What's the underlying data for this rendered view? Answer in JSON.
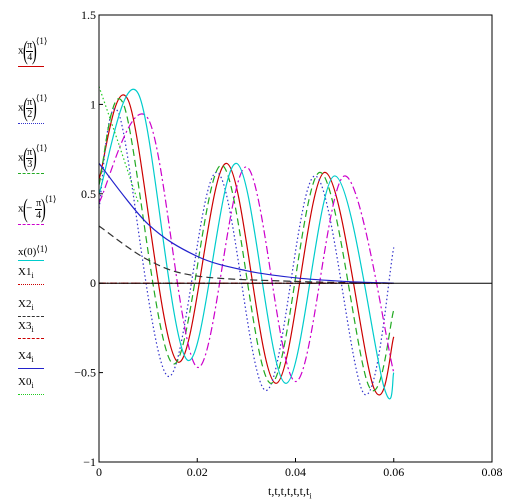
{
  "chart_data": {
    "type": "line",
    "x_axis": {
      "xlim": [
        0,
        0.08
      ],
      "tick_labels": [
        "0",
        "0.02",
        "0.04",
        "0.06",
        "0.08"
      ],
      "label": "t,t,t,t,t,t,t",
      "label_subscript": "i"
    },
    "y_axis": {
      "ylim": [
        -1,
        1.5
      ],
      "tick_labels": [
        "1.5",
        "1",
        "0.5",
        "0",
        "−0.5",
        "−1"
      ]
    },
    "grid": false,
    "legend_position": "left",
    "legend": [
      {
        "prefix": "x",
        "sign": "",
        "num": "π",
        "den": "4",
        "sup": "⟨1⟩"
      },
      {
        "prefix": "x",
        "sign": "",
        "num": "π",
        "den": "2",
        "sup": "⟨1⟩"
      },
      {
        "prefix": "x",
        "sign": "",
        "num": "π",
        "den": "3",
        "sup": "⟨1⟩"
      },
      {
        "prefix": "x",
        "sign": "−",
        "num": "π",
        "den": "4",
        "sup": "⟨1⟩"
      },
      {
        "text": "x(0)",
        "sup": "⟨1⟩"
      },
      {
        "text": "X1",
        "sub": "i"
      },
      {
        "text": "X2",
        "sub": "i"
      },
      {
        "text": "X3",
        "sub": "i"
      },
      {
        "text": "X4",
        "sub": "i"
      },
      {
        "text": "X0",
        "sub": "i"
      }
    ],
    "series": [
      {
        "color": "#cc0000",
        "style": "solid",
        "sample_x": [
          0,
          0.006,
          0.016,
          0.026,
          0.036,
          0.046,
          0.056,
          0.06
        ],
        "sample_y": [
          0.58,
          1.02,
          -0.44,
          0.67,
          -0.56,
          0.62,
          -0.59,
          -0.3
        ]
      },
      {
        "color": "#3333cc",
        "style": "dotted",
        "sample_x": [
          0,
          0.004,
          0.014,
          0.024,
          0.034,
          0.044,
          0.054,
          0.06
        ],
        "sample_y": [
          0.42,
          0.95,
          -0.52,
          0.62,
          -0.6,
          0.6,
          -0.62,
          0.2
        ]
      },
      {
        "color": "#22aa22",
        "style": "dashed",
        "sample_x": [
          0,
          0.005,
          0.015,
          0.025,
          0.035,
          0.045,
          0.055,
          0.06
        ],
        "sample_y": [
          0.55,
          1.0,
          -0.45,
          0.66,
          -0.56,
          0.62,
          -0.58,
          -0.15
        ]
      },
      {
        "color": "#cc00cc",
        "style": "dashdot",
        "sample_x": [
          0,
          0.01,
          0.02,
          0.03,
          0.04,
          0.05,
          0.06
        ],
        "sample_y": [
          0.45,
          0.92,
          -0.47,
          0.65,
          -0.55,
          0.6,
          -0.5
        ]
      },
      {
        "color": "#00cccc",
        "style": "solid",
        "sample_x": [
          0,
          0.008,
          0.018,
          0.028,
          0.038,
          0.048,
          0.058,
          0.06
        ],
        "sample_y": [
          0.5,
          1.06,
          -0.43,
          0.67,
          -0.56,
          0.6,
          -0.58,
          -0.5
        ]
      },
      {
        "color": "#cc0000",
        "style": "dotted",
        "sample_x": [
          0,
          0.02,
          0.04,
          0.06
        ],
        "sample_y": [
          0.0,
          0.0,
          0.0,
          0.0
        ]
      },
      {
        "color": "#333333",
        "style": "dashed",
        "sample_x": [
          0,
          0.01,
          0.02,
          0.04,
          0.06
        ],
        "sample_y": [
          0.32,
          0.13,
          0.04,
          0.01,
          0.0
        ]
      },
      {
        "color": "#cc0000",
        "style": "dashed",
        "sample_x": [
          0,
          0.02,
          0.04,
          0.06
        ],
        "sample_y": [
          0.0,
          0.0,
          0.0,
          0.0
        ]
      },
      {
        "color": "#2222cc",
        "style": "solid",
        "sample_x": [
          0,
          0.01,
          0.02,
          0.03,
          0.04,
          0.05,
          0.06
        ],
        "sample_y": [
          0.67,
          0.33,
          0.15,
          0.07,
          0.03,
          0.01,
          0.0
        ]
      },
      {
        "color": "#22cc22",
        "style": "dotted",
        "sample_x": [
          0,
          0.004,
          0.008
        ],
        "sample_y": [
          1.1,
          0.78,
          0.45
        ]
      }
    ]
  }
}
